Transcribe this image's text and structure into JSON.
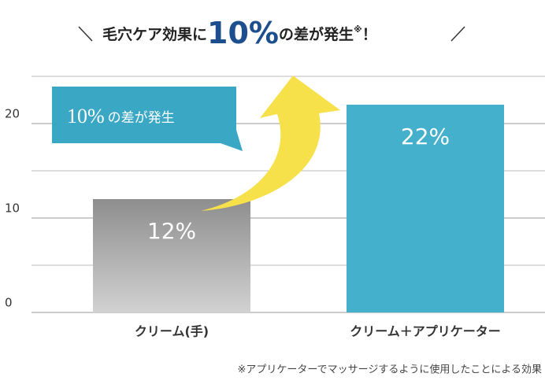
{
  "chart_data": {
    "type": "bar",
    "title": {
      "before": "毛穴ケア効果に",
      "emphasis": "10%",
      "after": "の差が発生",
      "mark": "※",
      "end": "！"
    },
    "annotation": {
      "emphasis": "10%",
      "text": "の差が発生"
    },
    "categories": [
      "クリーム(手)",
      "クリーム＋アプリケーター"
    ],
    "values": [
      12,
      22
    ],
    "value_labels": [
      "12%",
      "22%"
    ],
    "colors": [
      "#8e8e8e",
      "#44b0cc"
    ],
    "ylim": [
      0,
      25
    ],
    "yticks": [
      0,
      10,
      20
    ],
    "minor_yticks": [
      5,
      15,
      25
    ],
    "grid": true,
    "footnote": "※アプリケーターでマッサージするように使用したことによる効果"
  }
}
